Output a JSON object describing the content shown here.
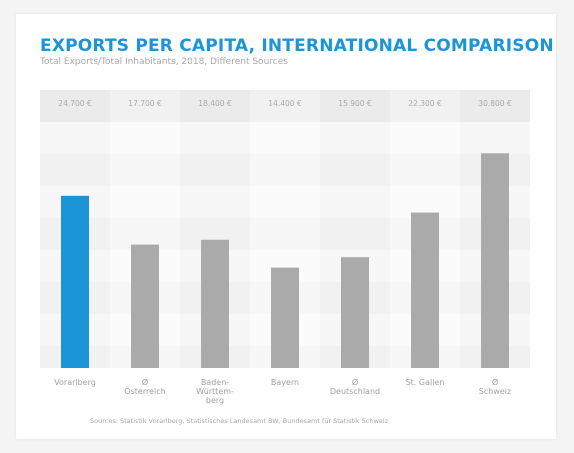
{
  "colors": {
    "accent": "#1b95d8",
    "bar": "#aaaaaa",
    "title": "#1b95d8",
    "text": "#a0a0a0"
  },
  "chart_data": {
    "type": "bar",
    "title": "EXPORTS PER CAPITA, INTERNATIONAL COMPARISON",
    "subtitle": "Total Exports/Total Inhabitants, 2018, Different Sources",
    "xlabel": "",
    "ylabel": "",
    "categories": [
      "Vorarlberg",
      "Ø\nÖsterreich",
      "Baden-\nWürttem-\nberg",
      "Bayern",
      "Ø\nDeutschland",
      "St. Gallen",
      "Ø\nSchweiz"
    ],
    "values": [
      24700,
      17700,
      18400,
      14400,
      15900,
      22300,
      30800
    ],
    "value_labels": [
      "24.700 €",
      "17.700 €",
      "18.400 €",
      "14.400 €",
      "15.900 €",
      "22.300 €",
      "30.800 €"
    ],
    "highlight_index": 0,
    "ylim": [
      0,
      35000
    ],
    "grid": false,
    "legend": "none",
    "source": "Sources: Statistik Vorarlberg, Statistisches Landesamt BW, Bundesamt für Statistik Schweiz"
  }
}
